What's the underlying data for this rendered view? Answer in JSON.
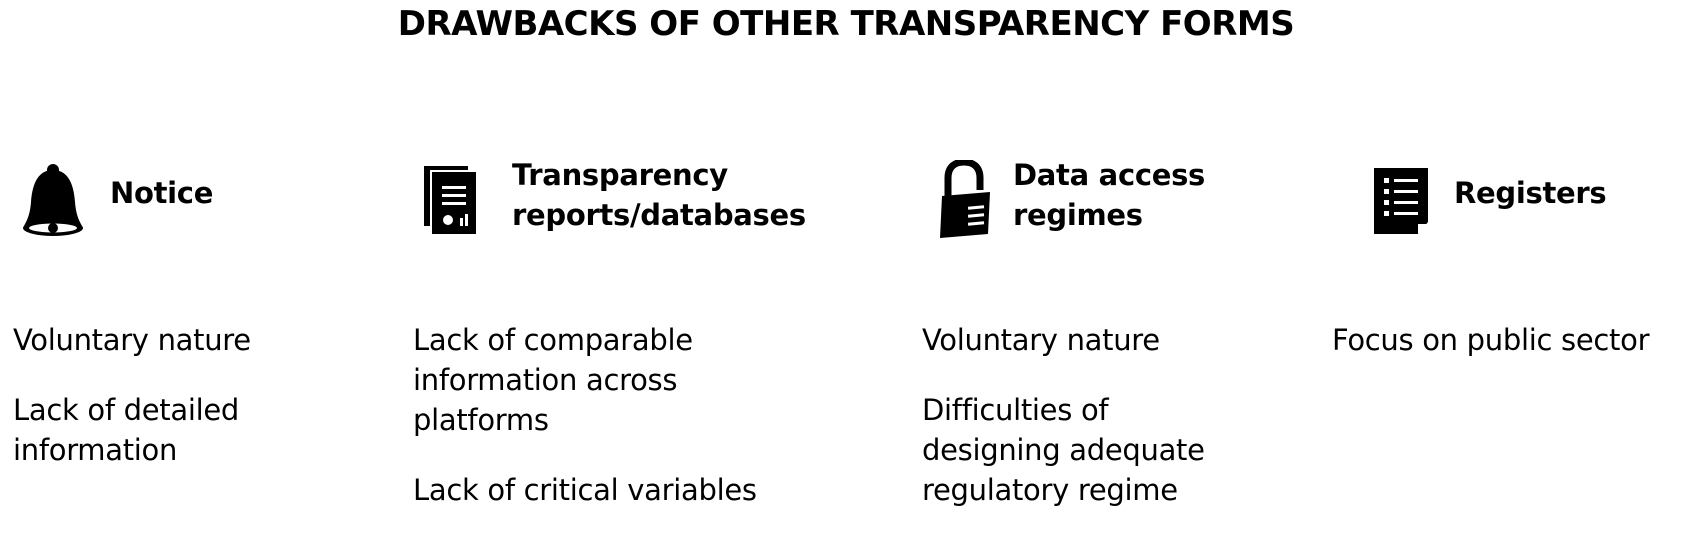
{
  "title": "DRAWBACKS OF OTHER TRANSPARENCY FORMS",
  "columns": [
    {
      "heading": "Notice",
      "icon": "bell-icon",
      "items": [
        "Voluntary nature",
        "Lack of detailed\ninformation"
      ]
    },
    {
      "heading": "Transparency\nreports/databases",
      "icon": "documents-icon",
      "items": [
        "Lack of comparable\ninformation across\nplatforms",
        "Lack of critical variables"
      ]
    },
    {
      "heading": "Data access\nregimes",
      "icon": "padlock-icon",
      "items": [
        "Voluntary nature",
        "Difficulties of\ndesigning adequate\nregulatory regime"
      ]
    },
    {
      "heading": "Registers",
      "icon": "register-list-icon",
      "items": [
        "Focus on public sector"
      ]
    }
  ]
}
